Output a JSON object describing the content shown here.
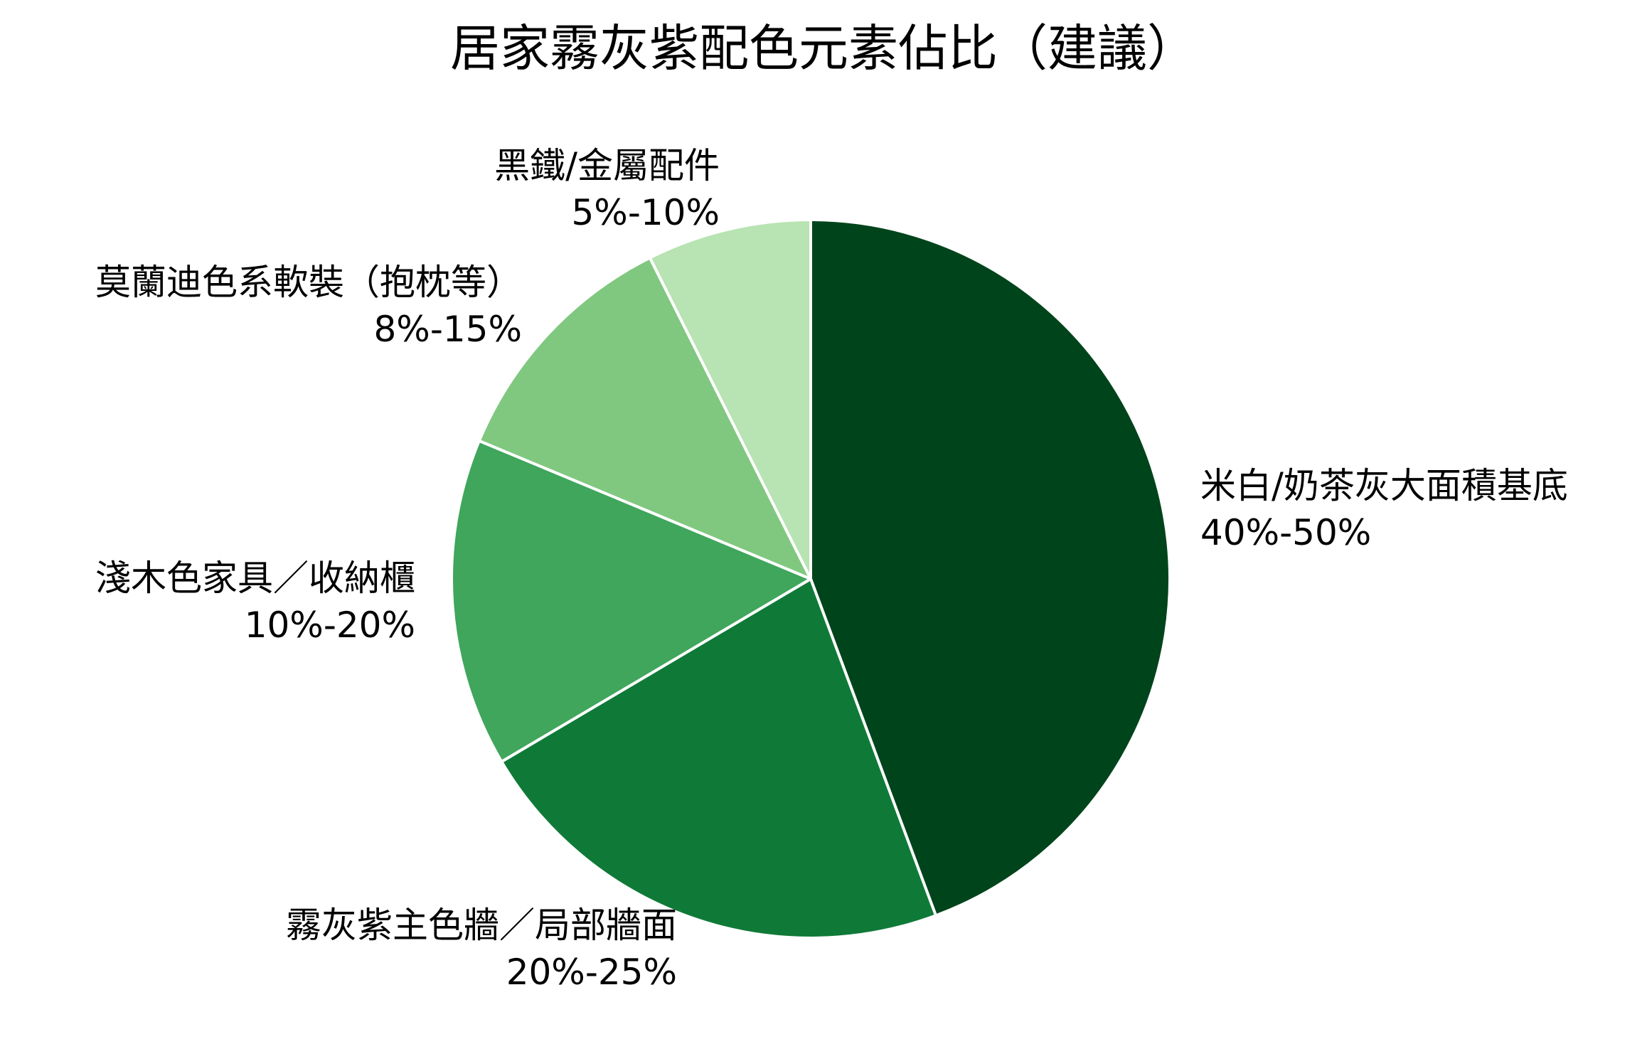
{
  "chart_data": {
    "type": "pie",
    "title": "居家霧灰紫配色元素佔比（建議）",
    "start_angle": "12 o'clock",
    "direction": "clockwise",
    "slices": [
      {
        "label": "米白/奶茶灰大面積基底",
        "range": "40%-50%",
        "value": 45,
        "color": "#00441b"
      },
      {
        "label": "霧灰紫主色牆／局部牆面",
        "range": "20%-25%",
        "value": 22.5,
        "color": "#0f7a37"
      },
      {
        "label": "淺木色家具／收納櫃",
        "range": "10%-20%",
        "value": 15,
        "color": "#3fa65b"
      },
      {
        "label": "莫蘭迪色系軟裝（抱枕等）",
        "range": "8%-15%",
        "value": 11.5,
        "color": "#80c880"
      },
      {
        "label": "黑鐵/金屬配件",
        "range": "5%-10%",
        "value": 7.5,
        "color": "#b8e3b2"
      }
    ],
    "slice_edge_color": "#ffffff"
  }
}
